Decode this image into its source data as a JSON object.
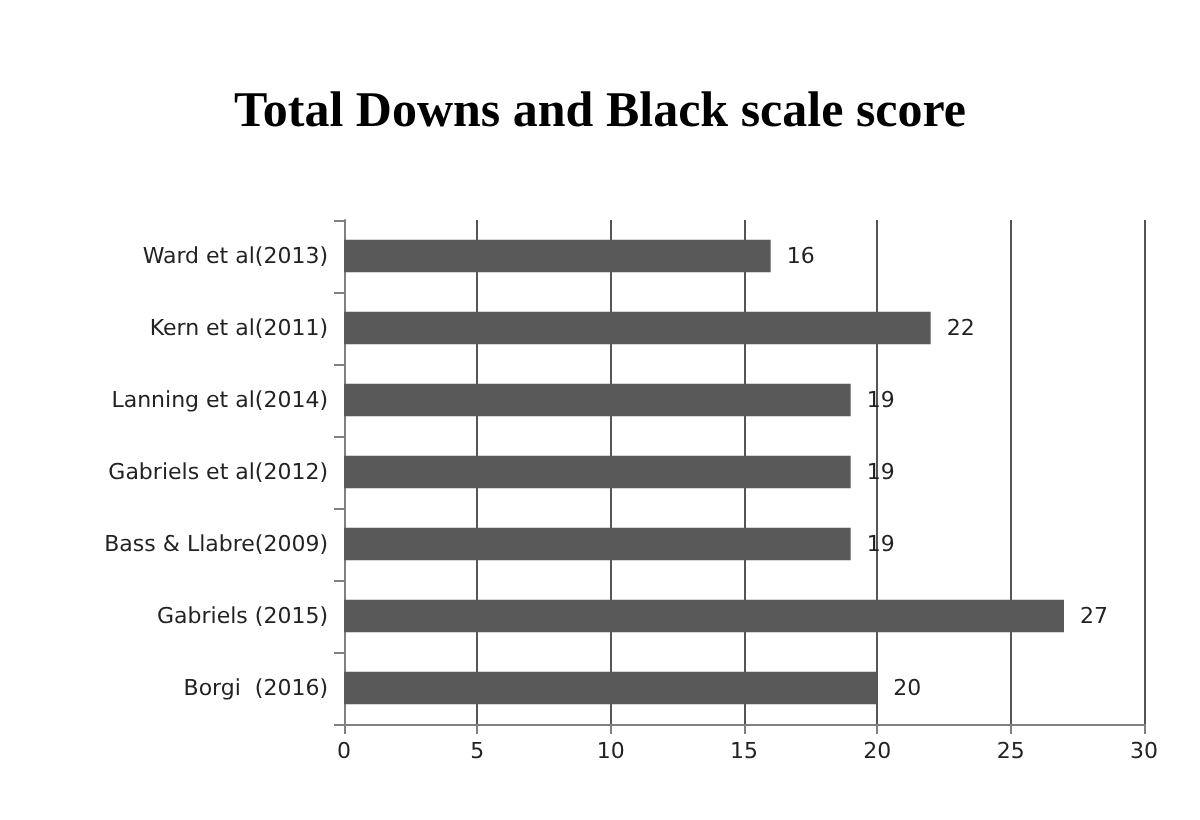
{
  "chart_data": {
    "type": "bar",
    "orientation": "horizontal",
    "title": "Total Downs and Black scale score",
    "categories": [
      "Ward et al(2013)",
      "Kern et al(2011)",
      "Lanning et al(2014)",
      "Gabriels et al(2012)",
      "Bass & Llabre(2009)",
      "Gabriels (2015)",
      "Borgi  (2016)"
    ],
    "values": [
      16,
      22,
      19,
      19,
      19,
      27,
      20
    ],
    "color": "#595959",
    "xlim": [
      0,
      30
    ],
    "xticks": [
      0,
      5,
      10,
      15,
      20,
      25,
      30
    ],
    "grid": "x",
    "data_labels": true
  }
}
